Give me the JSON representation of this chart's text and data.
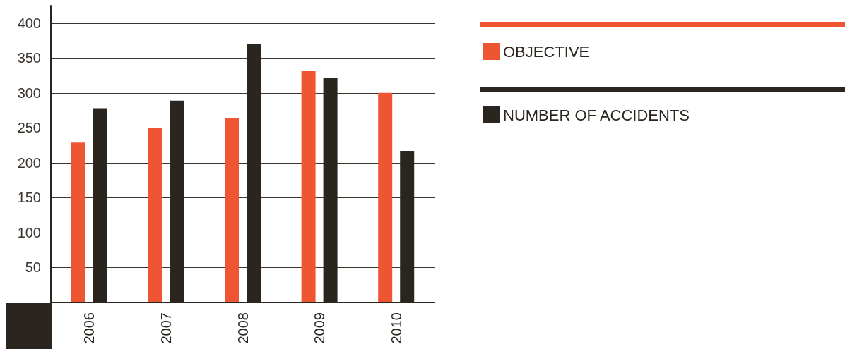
{
  "chart_data": {
    "type": "bar",
    "categories": [
      "2006",
      "2007",
      "2008",
      "2009",
      "2010"
    ],
    "series": [
      {
        "name": "OBJECTIVE",
        "color": "#ee5532",
        "values": [
          229,
          250,
          264,
          332,
          300
        ]
      },
      {
        "name": "NUMBER OF ACCIDENTS",
        "color": "#2a251e",
        "values": [
          278,
          289,
          370,
          322,
          217
        ]
      }
    ],
    "ylim": [
      0,
      425
    ],
    "yticks": [
      50,
      100,
      150,
      200,
      250,
      300,
      350,
      400
    ],
    "grid": "y",
    "legend": "right"
  }
}
